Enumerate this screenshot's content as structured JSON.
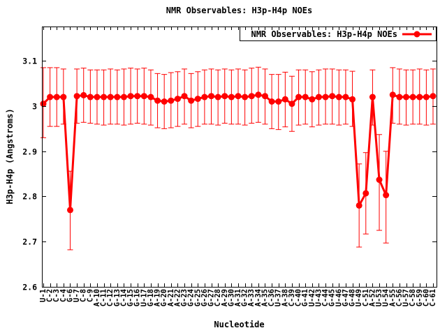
{
  "title": "NMR Observables: H3p-H4p NOEs",
  "legend": {
    "label": "NMR Observables: H3p-H4p NOEs",
    "position": "top-right",
    "boxed": true
  },
  "axes": {
    "x_label": "Nucleotide",
    "y_label": "H3p-H4p (Angstroms)",
    "y_tick_labels": [
      "2.6",
      "2.7",
      "2.8",
      "2.9",
      "3",
      "3.1"
    ],
    "y_tick_values": [
      2.6,
      2.7,
      2.8,
      2.9,
      3.0,
      3.1
    ],
    "y_range": [
      2.6,
      3.176
    ],
    "grid": "off"
  },
  "colors": {
    "series": "#ff0000",
    "text": "#000000",
    "border": "#000000",
    "background": "#ffffff"
  },
  "chart_data": {
    "type": "line",
    "title": "NMR Observables: H3p-H4p NOEs",
    "xlabel": "Nucleotide",
    "ylabel": "H3p-H4p (Angstroms)",
    "ylim": [
      2.6,
      3.176
    ],
    "legend_position": "top-right",
    "marker": "filled-circle",
    "error_bars": true,
    "series_name": "NMR Observables: H3p-H4p NOEs",
    "categories": [
      "U-1",
      "C-2",
      "C-3",
      "C-4",
      "G-6",
      "U-7",
      "C-8",
      "C-9",
      "A-10",
      "C-11",
      "C-12",
      "G-13",
      "C-14",
      "G-15",
      "G-16",
      "U-17",
      "G-18",
      "A-19",
      "G-20",
      "A-21",
      "A-22",
      "G-23",
      "G-24",
      "G-25",
      "G-26",
      "G-27",
      "C-28",
      "A-29",
      "G-30",
      "A-31",
      "G-32",
      "A-33",
      "A-34",
      "A-35",
      "C-36",
      "U-37",
      "A-38",
      "C-39",
      "C-40",
      "G-41",
      "U-42",
      "U-43",
      "C-44",
      "G-45",
      "U-46",
      "G-47",
      "G-48",
      "U-49",
      "C-51",
      "A-52",
      "U-53",
      "U-54",
      "A-55",
      "C-56",
      "U-57",
      "C-58",
      "G-59",
      "C-60",
      "C-61"
    ],
    "values": [
      3.005,
      3.02,
      3.02,
      3.02,
      2.77,
      3.022,
      3.024,
      3.02,
      3.02,
      3.02,
      3.02,
      3.02,
      3.02,
      3.022,
      3.022,
      3.022,
      3.02,
      3.012,
      3.01,
      3.012,
      3.016,
      3.022,
      3.012,
      3.016,
      3.02,
      3.022,
      3.02,
      3.022,
      3.02,
      3.022,
      3.02,
      3.022,
      3.025,
      3.022,
      3.01,
      3.01,
      3.015,
      3.005,
      3.02,
      3.02,
      3.015,
      3.02,
      3.02,
      3.022,
      3.02,
      3.02,
      3.015,
      2.78,
      2.807,
      3.02,
      2.837,
      2.803,
      3.025,
      3.02,
      3.02,
      3.02,
      3.02,
      3.02,
      3.022
    ],
    "error_low": [
      2.93,
      2.955,
      2.955,
      2.96,
      2.682,
      2.962,
      2.964,
      2.962,
      2.96,
      2.958,
      2.96,
      2.96,
      2.958,
      2.96,
      2.962,
      2.96,
      2.958,
      2.952,
      2.95,
      2.952,
      2.955,
      2.96,
      2.952,
      2.955,
      2.96,
      2.96,
      2.958,
      2.962,
      2.96,
      2.96,
      2.958,
      2.962,
      2.964,
      2.96,
      2.95,
      2.948,
      2.954,
      2.944,
      2.958,
      2.96,
      2.954,
      2.958,
      2.96,
      2.96,
      2.958,
      2.96,
      2.955,
      2.688,
      2.717,
      2.958,
      2.725,
      2.697,
      2.962,
      2.96,
      2.958,
      2.96,
      2.96,
      2.958,
      2.96
    ],
    "error_high": [
      3.085,
      3.085,
      3.085,
      3.082,
      2.856,
      3.082,
      3.084,
      3.08,
      3.08,
      3.08,
      3.082,
      3.08,
      3.082,
      3.084,
      3.082,
      3.084,
      3.08,
      3.072,
      3.07,
      3.074,
      3.076,
      3.082,
      3.072,
      3.076,
      3.08,
      3.082,
      3.08,
      3.082,
      3.08,
      3.082,
      3.08,
      3.084,
      3.086,
      3.082,
      3.07,
      3.07,
      3.075,
      3.066,
      3.08,
      3.08,
      3.076,
      3.08,
      3.082,
      3.082,
      3.08,
      3.08,
      3.077,
      2.872,
      2.897,
      3.08,
      2.937,
      2.9,
      3.085,
      3.082,
      3.08,
      3.08,
      3.082,
      3.08,
      3.082
    ]
  }
}
